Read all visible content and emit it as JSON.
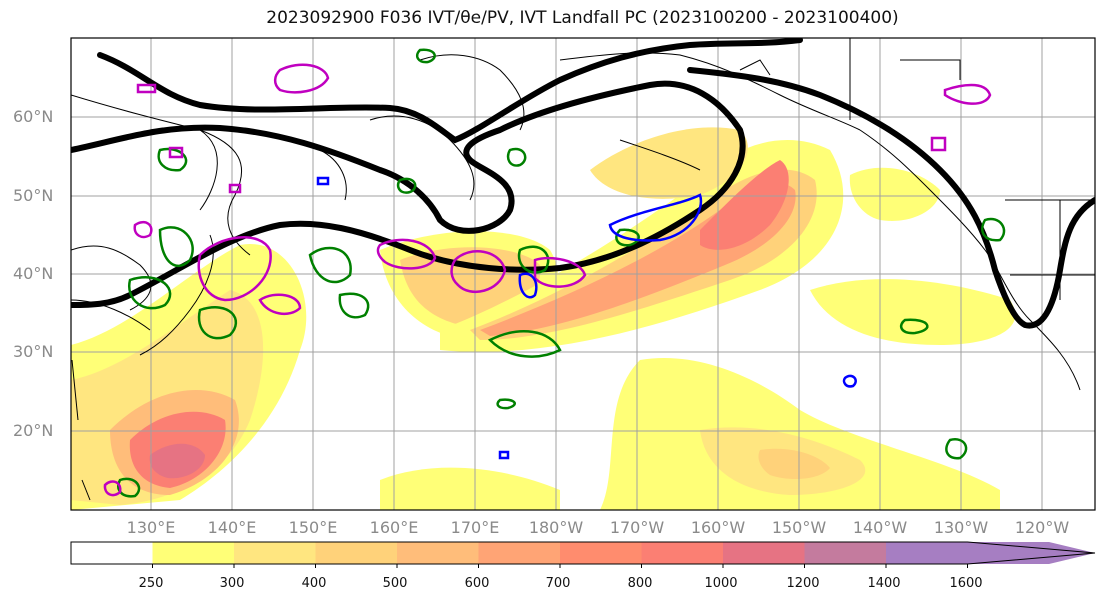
{
  "title": "2023092900 F036 IVT/θe/PV, IVT Landfall PC (2023100200 - 2023100400)",
  "lat_labels": [
    "60°N",
    "50°N",
    "40°N",
    "30°N",
    "20°N"
  ],
  "lon_labels": [
    "130°E",
    "140°E",
    "150°E",
    "160°E",
    "170°E",
    "180°W",
    "170°W",
    "160°W",
    "150°W",
    "140°W",
    "130°W",
    "120°W"
  ],
  "colorbar": {
    "ticks": [
      "250",
      "300",
      "400",
      "500",
      "600",
      "700",
      "800",
      "1000",
      "1200",
      "1400",
      "1600"
    ],
    "colors": [
      "#ffffff",
      "#ffff77",
      "#ffe680",
      "#ffd27a",
      "#ffbd7a",
      "#ffa475",
      "#ff8c6e",
      "#fb7f73",
      "#e67383",
      "#c47b9e",
      "#a67ec2",
      "#a67ec2"
    ]
  },
  "layers": {
    "pv_contour_color": "#000000",
    "theta_e_contour_color": "#008000",
    "ivt_pc_contour_color": "#c000c0",
    "blue_contour_color": "#0000ff"
  }
}
